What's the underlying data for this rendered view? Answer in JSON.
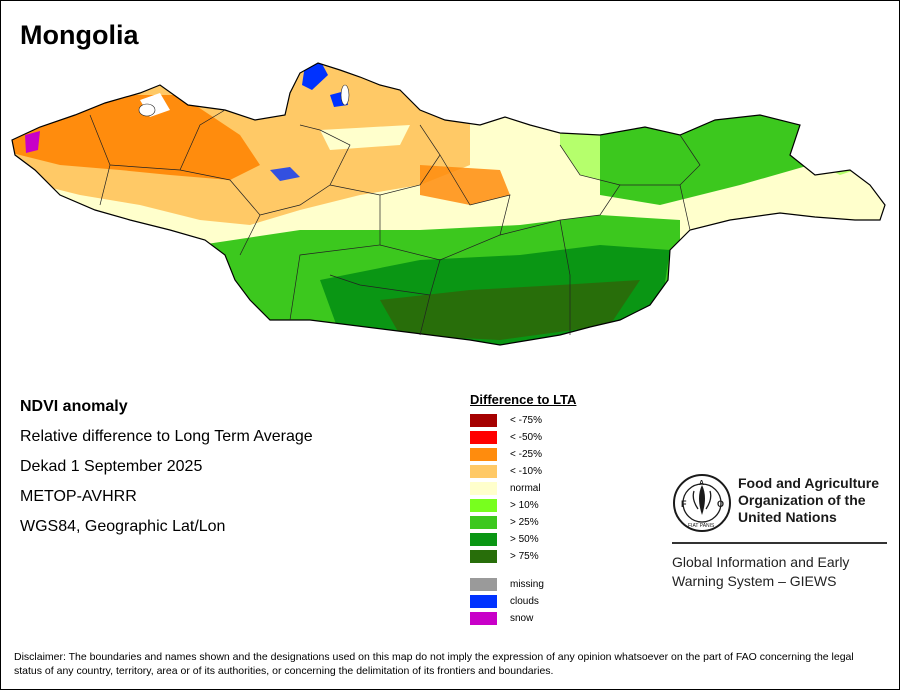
{
  "title": "Mongolia",
  "info": {
    "line1": "NDVI anomaly",
    "line2": "Relative difference to Long Term Average",
    "line3": "Dekad 1 September 2025",
    "line4": "METOP-AVHRR",
    "line5": "WGS84, Geographic Lat/Lon"
  },
  "legend": {
    "title": "Difference to LTA",
    "items": [
      {
        "label": "< -75%",
        "color": "#a50000"
      },
      {
        "label": "< -50%",
        "color": "#ff0000"
      },
      {
        "label": "< -25%",
        "color": "#ff8c0d"
      },
      {
        "label": "< -10%",
        "color": "#ffc966"
      },
      {
        "label": "normal",
        "color": "#ffffcc"
      },
      {
        "label": "> 10%",
        "color": "#78ff1e"
      },
      {
        "label": "> 25%",
        "color": "#3cc81e"
      },
      {
        "label": "> 50%",
        "color": "#0a9614"
      },
      {
        "label": "> 75%",
        "color": "#286e0a"
      }
    ],
    "extra": [
      {
        "label": "missing",
        "color": "#9a9a9a"
      },
      {
        "label": "clouds",
        "color": "#0032ff"
      },
      {
        "label": "snow",
        "color": "#c800c8"
      }
    ]
  },
  "fao": {
    "name1": "Food and Agriculture",
    "name2": "Organization of the",
    "name3": "United Nations",
    "logo_letters": "FAO",
    "logo_motto": "FIAT PANIS",
    "giews1": "Global Information and Early",
    "giews2": "Warning System – GIEWS"
  },
  "disclaimer": "Disclaimer: The boundaries and names shown and the designations used on this map do not imply the expression of any opinion whatsoever on the part of FAO concerning the legal status of any country, territory, area or of its authorities, or concerning the delimitation of its frontiers and boundaries."
}
